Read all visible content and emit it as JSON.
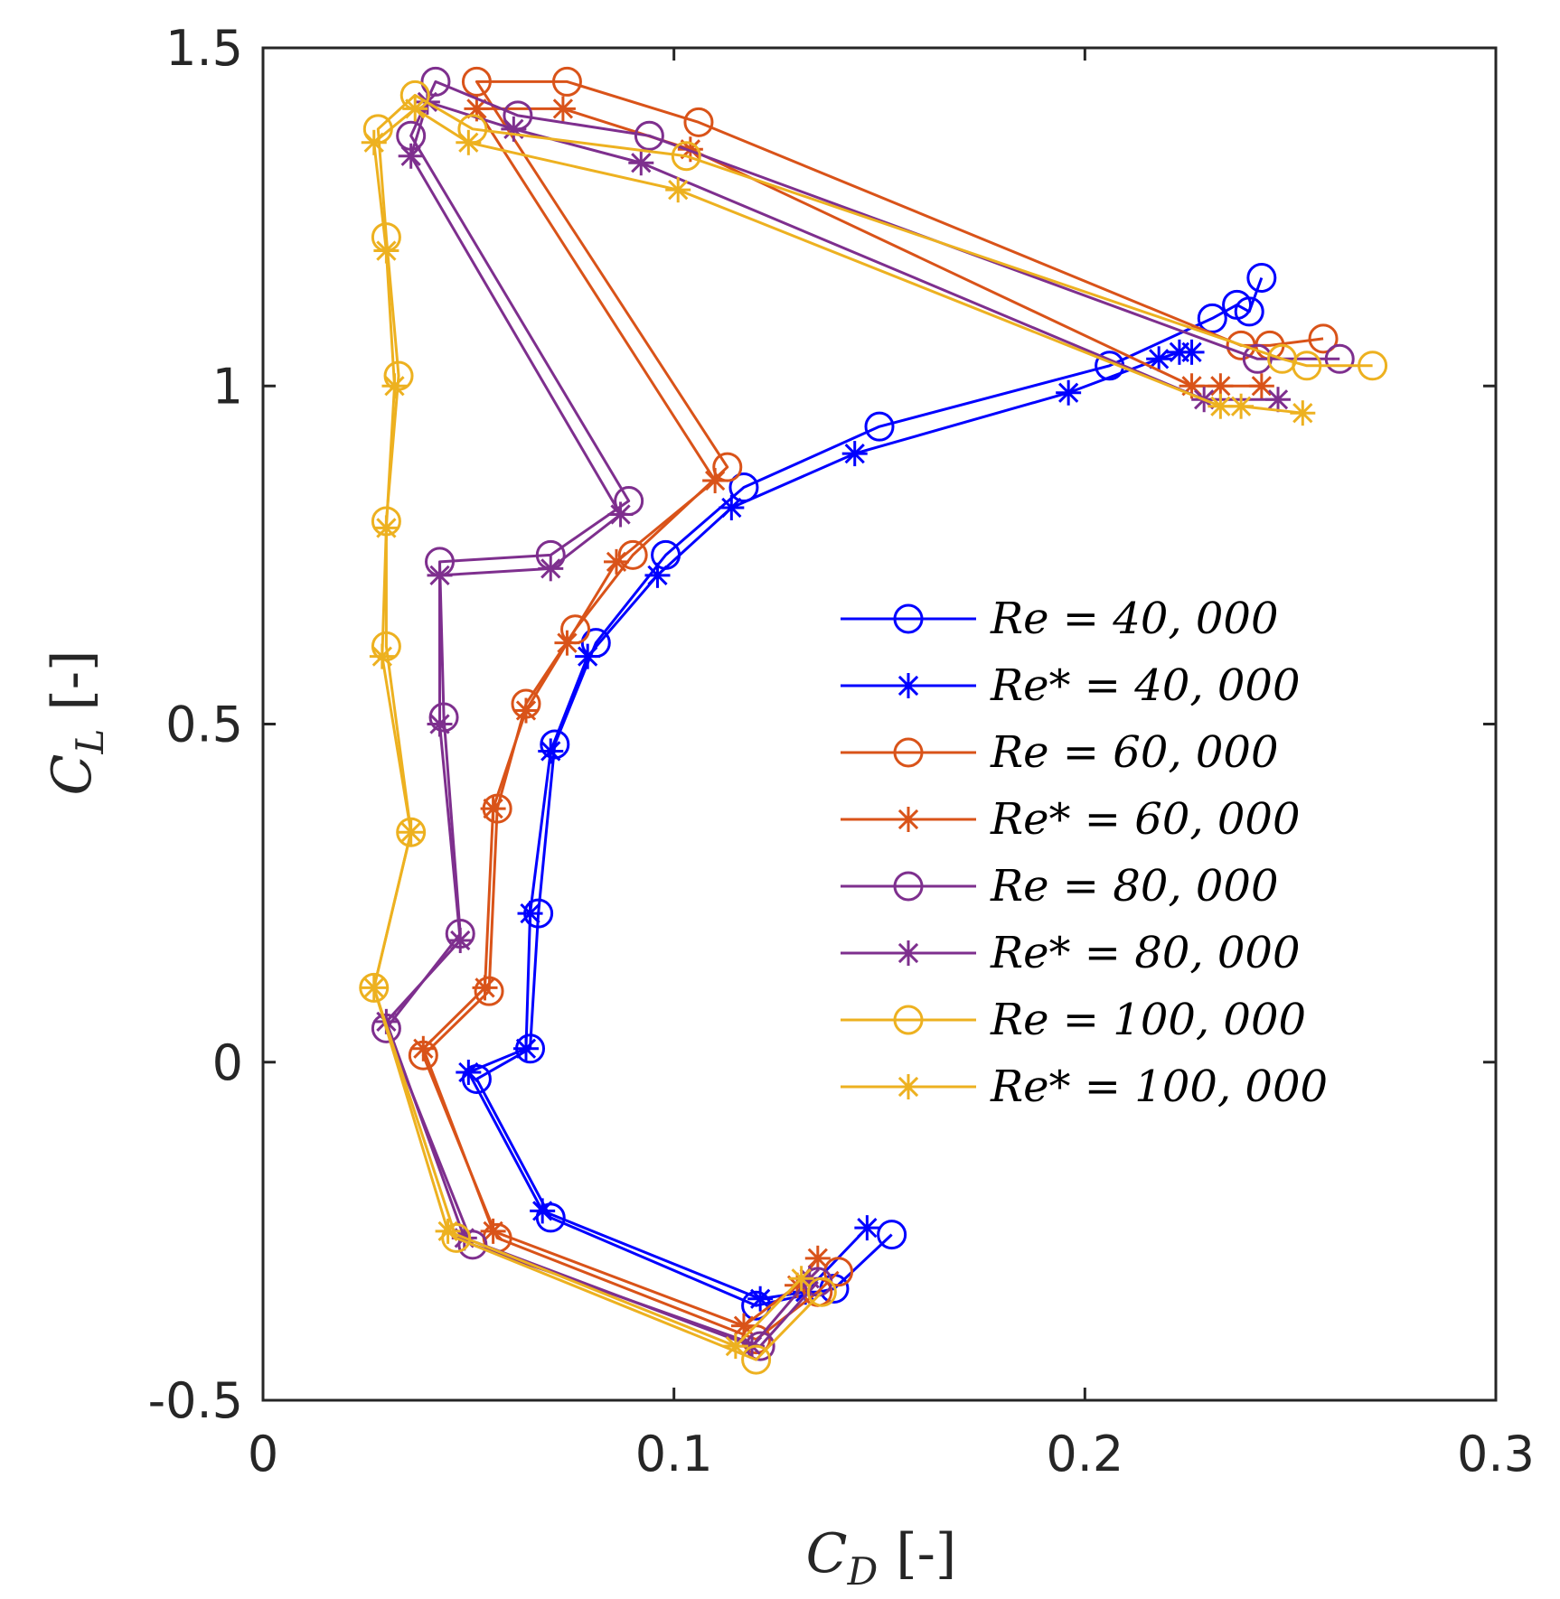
{
  "chart_data": {
    "type": "line",
    "xlabel": {
      "main": "C",
      "sub": "D",
      "unit": "[-]"
    },
    "ylabel": {
      "main": "C",
      "sub": "L",
      "unit": "[-]"
    },
    "xlim": [
      0,
      0.3
    ],
    "ylim": [
      -0.5,
      1.5
    ],
    "x_ticks": [
      0,
      0.1,
      0.2,
      0.3
    ],
    "x_tick_labels": [
      "0",
      "0.1",
      "0.2",
      "0.3"
    ],
    "y_ticks": [
      -0.5,
      0,
      0.5,
      1,
      1.5
    ],
    "y_tick_labels": [
      "-0.5",
      "0",
      "0.5",
      "1",
      "1.5"
    ],
    "grid": false,
    "legend_position": "center-right",
    "series": [
      {
        "name": "Re = 40, 000",
        "color": "#0000FF",
        "marker": "circle",
        "points": [
          [
            0.153,
            -0.255
          ],
          [
            0.139,
            -0.335
          ],
          [
            0.12,
            -0.36
          ],
          [
            0.07,
            -0.23
          ],
          [
            0.052,
            -0.025
          ],
          [
            0.065,
            0.02
          ],
          [
            0.067,
            0.22
          ],
          [
            0.071,
            0.47
          ],
          [
            0.081,
            0.62
          ],
          [
            0.098,
            0.75
          ],
          [
            0.117,
            0.85
          ],
          [
            0.15,
            0.94
          ],
          [
            0.206,
            1.03
          ],
          [
            0.231,
            1.1
          ],
          [
            0.237,
            1.12
          ],
          [
            0.24,
            1.11
          ],
          [
            0.243,
            1.16
          ]
        ]
      },
      {
        "name": "Re* = 40, 000",
        "color": "#0000FF",
        "marker": "star",
        "points": [
          [
            0.147,
            -0.245
          ],
          [
            0.132,
            -0.34
          ],
          [
            0.121,
            -0.35
          ],
          [
            0.068,
            -0.22
          ],
          [
            0.05,
            -0.015
          ],
          [
            0.064,
            0.02
          ],
          [
            0.065,
            0.22
          ],
          [
            0.07,
            0.46
          ],
          [
            0.079,
            0.6
          ],
          [
            0.096,
            0.72
          ],
          [
            0.114,
            0.82
          ],
          [
            0.144,
            0.9
          ],
          [
            0.196,
            0.99
          ],
          [
            0.218,
            1.04
          ],
          [
            0.223,
            1.05
          ],
          [
            0.226,
            1.05
          ]
        ]
      },
      {
        "name": "Re = 60, 000",
        "color": "#D95319",
        "marker": "circle",
        "points": [
          [
            0.14,
            -0.31
          ],
          [
            0.135,
            -0.34
          ],
          [
            0.12,
            -0.41
          ],
          [
            0.057,
            -0.26
          ],
          [
            0.039,
            0.01
          ],
          [
            0.055,
            0.105
          ],
          [
            0.057,
            0.375
          ],
          [
            0.064,
            0.53
          ],
          [
            0.076,
            0.64
          ],
          [
            0.09,
            0.75
          ],
          [
            0.113,
            0.88
          ],
          [
            0.052,
            1.45
          ],
          [
            0.074,
            1.45
          ],
          [
            0.106,
            1.39
          ],
          [
            0.238,
            1.06
          ],
          [
            0.245,
            1.06
          ],
          [
            0.258,
            1.07
          ]
        ]
      },
      {
        "name": "Re* = 60, 000",
        "color": "#D95319",
        "marker": "star",
        "points": [
          [
            0.135,
            -0.29
          ],
          [
            0.13,
            -0.33
          ],
          [
            0.117,
            -0.39
          ],
          [
            0.056,
            -0.25
          ],
          [
            0.039,
            0.02
          ],
          [
            0.054,
            0.11
          ],
          [
            0.056,
            0.375
          ],
          [
            0.064,
            0.52
          ],
          [
            0.074,
            0.62
          ],
          [
            0.086,
            0.74
          ],
          [
            0.11,
            0.86
          ],
          [
            0.052,
            1.41
          ],
          [
            0.073,
            1.41
          ],
          [
            0.104,
            1.35
          ],
          [
            0.226,
            1.0
          ],
          [
            0.233,
            1.0
          ],
          [
            0.243,
            1.0
          ]
        ]
      },
      {
        "name": "Re = 80, 000",
        "color": "#7E2F8E",
        "marker": "circle",
        "points": [
          [
            0.135,
            -0.325
          ],
          [
            0.121,
            -0.42
          ],
          [
            0.051,
            -0.27
          ],
          [
            0.03,
            0.05
          ],
          [
            0.048,
            0.19
          ],
          [
            0.044,
            0.51
          ],
          [
            0.043,
            0.74
          ],
          [
            0.07,
            0.75
          ],
          [
            0.089,
            0.83
          ],
          [
            0.036,
            1.37
          ],
          [
            0.042,
            1.45
          ],
          [
            0.062,
            1.4
          ],
          [
            0.094,
            1.37
          ],
          [
            0.242,
            1.04
          ],
          [
            0.262,
            1.04
          ]
        ]
      },
      {
        "name": "Re* = 80, 000",
        "color": "#7E2F8E",
        "marker": "star",
        "points": [
          [
            0.133,
            -0.32
          ],
          [
            0.119,
            -0.42
          ],
          [
            0.049,
            -0.26
          ],
          [
            0.03,
            0.06
          ],
          [
            0.048,
            0.18
          ],
          [
            0.043,
            0.5
          ],
          [
            0.043,
            0.72
          ],
          [
            0.07,
            0.73
          ],
          [
            0.087,
            0.81
          ],
          [
            0.036,
            1.34
          ],
          [
            0.04,
            1.42
          ],
          [
            0.061,
            1.38
          ],
          [
            0.092,
            1.33
          ],
          [
            0.229,
            0.98
          ],
          [
            0.247,
            0.98
          ]
        ]
      },
      {
        "name": "Re = 100, 000",
        "color": "#EDB120",
        "marker": "circle",
        "points": [
          [
            0.136,
            -0.34
          ],
          [
            0.12,
            -0.44
          ],
          [
            0.047,
            -0.26
          ],
          [
            0.027,
            0.11
          ],
          [
            0.036,
            0.34
          ],
          [
            0.03,
            0.615
          ],
          [
            0.03,
            0.8
          ],
          [
            0.033,
            1.015
          ],
          [
            0.03,
            1.22
          ],
          [
            0.028,
            1.38
          ],
          [
            0.037,
            1.43
          ],
          [
            0.051,
            1.38
          ],
          [
            0.103,
            1.34
          ],
          [
            0.248,
            1.04
          ],
          [
            0.254,
            1.03
          ],
          [
            0.27,
            1.03
          ]
        ]
      },
      {
        "name": "Re* = 100, 000",
        "color": "#EDB120",
        "marker": "star",
        "points": [
          [
            0.131,
            -0.32
          ],
          [
            0.115,
            -0.42
          ],
          [
            0.045,
            -0.25
          ],
          [
            0.027,
            0.11
          ],
          [
            0.036,
            0.34
          ],
          [
            0.029,
            0.6
          ],
          [
            0.03,
            0.79
          ],
          [
            0.032,
            1.0
          ],
          [
            0.03,
            1.2
          ],
          [
            0.027,
            1.36
          ],
          [
            0.037,
            1.41
          ],
          [
            0.05,
            1.36
          ],
          [
            0.101,
            1.29
          ],
          [
            0.233,
            0.97
          ],
          [
            0.238,
            0.97
          ],
          [
            0.253,
            0.96
          ]
        ]
      }
    ]
  }
}
